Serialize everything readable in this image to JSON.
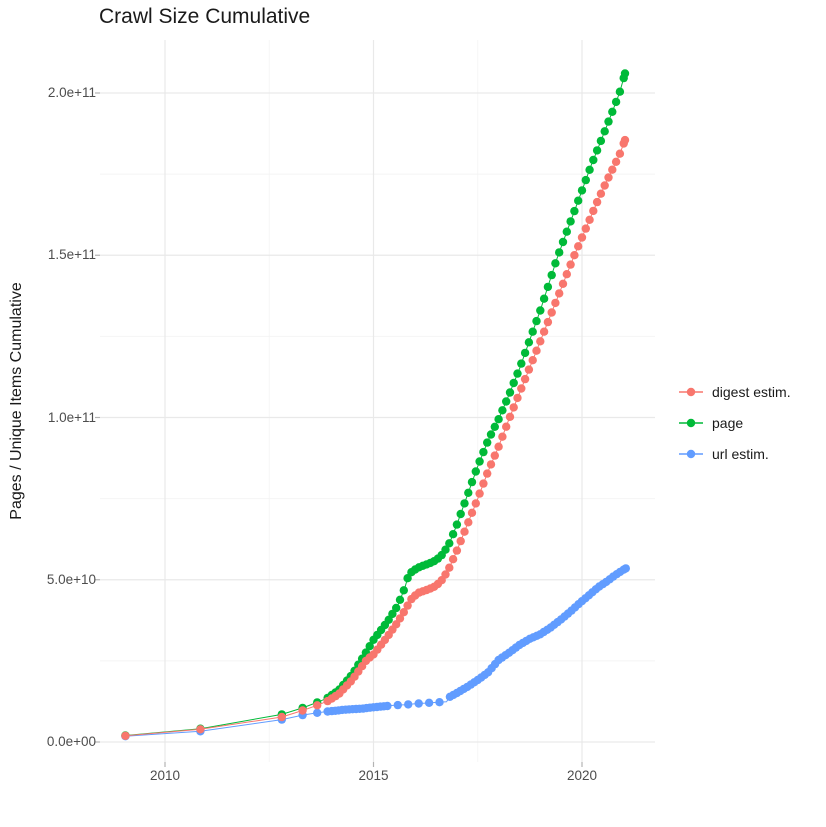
{
  "title": "Crawl Size Cumulative",
  "axes": {
    "y_title": "Pages / Unique Items Cumulative",
    "y_ticks": [
      "0.0e+00",
      "5.0e+10",
      "1.0e+11",
      "1.5e+11",
      "2.0e+11"
    ],
    "x_ticks": [
      "2010",
      "2015",
      "2020"
    ]
  },
  "legend": {
    "items": [
      {
        "label": "digest estim.",
        "color": "#F8766D"
      },
      {
        "label": "page",
        "color": "#00BA38"
      },
      {
        "label": "url estim.",
        "color": "#619CFF"
      }
    ]
  },
  "style": {
    "background": "#ffffff",
    "grid_major": "#e9e9e9",
    "grid_minor": "#f4f4f4",
    "tick_mark_color": "#b3b3b3",
    "tick_label_color": "#4d4d4d",
    "title_color": "#1a1a1a"
  },
  "chart_data": {
    "type": "line",
    "title": "Crawl Size Cumulative",
    "xlabel": "",
    "ylabel": "Pages / Unique Items Cumulative",
    "legend_position": "right",
    "grid": true,
    "x_axis": {
      "ticks": [
        2010,
        2015,
        2020
      ],
      "minor": [
        2012.5,
        2017.5
      ],
      "range": [
        2008.44,
        2021.75
      ],
      "unit": "year"
    },
    "y_axis": {
      "ticks": [
        0,
        50000000000.0,
        100000000000.0,
        150000000000.0,
        200000000000.0
      ],
      "minor": [
        25000000000.0,
        75000000000.0,
        125000000000.0,
        175000000000.0
      ],
      "range": [
        -6000000000.0,
        216000000000.0
      ]
    },
    "note": "x = calendar year (decimal); values read off chart pixels. 'points' are curve vertices; marker dots appear at each vertex before 2014 and at dot_schedule intervals after 2014.",
    "draw_order": [
      1,
      2,
      0
    ],
    "series": [
      {
        "name": "digest estim.",
        "color": "#F8766D",
        "dot_schedule": [
          [
            2014,
            0.0909
          ]
        ],
        "points": [
          [
            2009.05,
            1900000000.0
          ],
          [
            2010.85,
            3900000000.0
          ],
          [
            2012.8,
            7700000000.0
          ],
          [
            2013.3,
            9700000000.0
          ],
          [
            2013.65,
            11300000000.0
          ],
          [
            2013.9,
            12600000000.0
          ],
          [
            2014.17,
            14800000000.0
          ],
          [
            2014.5,
            19300000000.0
          ],
          [
            2014.83,
            25200000000.0
          ],
          [
            2015.0,
            27000000000.0
          ],
          [
            2015.33,
            32400000000.0
          ],
          [
            2015.58,
            36900000000.0
          ],
          [
            2015.75,
            40500000000.0
          ],
          [
            2015.92,
            44300000000.0
          ],
          [
            2016.08,
            46000000000.0
          ],
          [
            2016.33,
            47100000000.0
          ],
          [
            2016.5,
            48100000000.0
          ],
          [
            2016.67,
            50300000000.0
          ],
          [
            2016.83,
            54000000000.0
          ],
          [
            2017.0,
            59000000000.0
          ],
          [
            2017.25,
            67000000000.0
          ],
          [
            2017.5,
            75000000000.0
          ],
          [
            2017.75,
            83500000000.0
          ],
          [
            2018.0,
            91000000000.0
          ],
          [
            2018.25,
            99500000000.0
          ],
          [
            2018.5,
            107500000000.0
          ],
          [
            2018.75,
            115500000000.0
          ],
          [
            2019.0,
            123500000000.0
          ],
          [
            2019.2,
            130000000000.0
          ],
          [
            2019.4,
            136500000000.0
          ],
          [
            2019.6,
            143000000000.0
          ],
          [
            2019.8,
            149500000000.0
          ],
          [
            2020.0,
            155500000000.0
          ],
          [
            2020.2,
            161500000000.0
          ],
          [
            2020.4,
            167500000000.0
          ],
          [
            2020.6,
            173000000000.0
          ],
          [
            2020.75,
            177000000000.0
          ],
          [
            2020.9,
            181000000000.0
          ],
          [
            2021.03,
            185500000000.0
          ]
        ]
      },
      {
        "name": "page",
        "color": "#00BA38",
        "dot_schedule": [
          [
            2014,
            0.0909
          ]
        ],
        "points": [
          [
            2009.05,
            2000000000.0
          ],
          [
            2010.85,
            4100000000.0
          ],
          [
            2012.8,
            8500000000.0
          ],
          [
            2013.3,
            10500000000.0
          ],
          [
            2013.65,
            12200000000.0
          ],
          [
            2013.9,
            13600000000.0
          ],
          [
            2014.17,
            16000000000.0
          ],
          [
            2014.5,
            21000000000.0
          ],
          [
            2014.83,
            27800000000.0
          ],
          [
            2015.0,
            31500000000.0
          ],
          [
            2015.33,
            37000000000.0
          ],
          [
            2015.58,
            42000000000.0
          ],
          [
            2015.75,
            47500000000.0
          ],
          [
            2015.83,
            51000000000.0
          ],
          [
            2015.92,
            52500000000.0
          ],
          [
            2016.08,
            53800000000.0
          ],
          [
            2016.33,
            55000000000.0
          ],
          [
            2016.5,
            56000000000.0
          ],
          [
            2016.67,
            58000000000.0
          ],
          [
            2016.83,
            61500000000.0
          ],
          [
            2017.0,
            67000000000.0
          ],
          [
            2017.25,
            76000000000.0
          ],
          [
            2017.5,
            85000000000.0
          ],
          [
            2017.75,
            93000000000.0
          ],
          [
            2018.0,
            99500000000.0
          ],
          [
            2018.25,
            107000000000.0
          ],
          [
            2018.5,
            115000000000.0
          ],
          [
            2018.75,
            124000000000.0
          ],
          [
            2019.0,
            133000000000.0
          ],
          [
            2019.2,
            141000000000.0
          ],
          [
            2019.4,
            149000000000.0
          ],
          [
            2019.6,
            156000000000.0
          ],
          [
            2019.8,
            163000000000.0
          ],
          [
            2020.0,
            170000000000.0
          ],
          [
            2020.2,
            177000000000.0
          ],
          [
            2020.4,
            183500000000.0
          ],
          [
            2020.6,
            190000000000.0
          ],
          [
            2020.75,
            195000000000.0
          ],
          [
            2020.9,
            200000000000.0
          ],
          [
            2021.03,
            206000000000.0
          ]
        ]
      },
      {
        "name": "url estim.",
        "color": "#619CFF",
        "dot_schedule": [
          [
            2014,
            0.0833
          ],
          [
            2015.25,
            0.25
          ],
          [
            2016.75,
            0.0833
          ]
        ],
        "points": [
          [
            2009.05,
            1800000000.0
          ],
          [
            2010.85,
            3300000000.0
          ],
          [
            2012.8,
            6900000000.0
          ],
          [
            2013.3,
            8300000000.0
          ],
          [
            2013.65,
            9000000000.0
          ],
          [
            2013.9,
            9400000000.0
          ],
          [
            2014.08,
            9600000000.0
          ],
          [
            2014.25,
            9900000000.0
          ],
          [
            2014.5,
            10100000000.0
          ],
          [
            2014.75,
            10300000000.0
          ],
          [
            2015.0,
            10700000000.0
          ],
          [
            2015.25,
            11000000000.0
          ],
          [
            2015.5,
            11300000000.0
          ],
          [
            2015.75,
            11500000000.0
          ],
          [
            2016.0,
            11800000000.0
          ],
          [
            2016.25,
            12000000000.0
          ],
          [
            2016.5,
            12200000000.0
          ],
          [
            2016.75,
            12400000000.0
          ],
          [
            2016.83,
            13900000000.0
          ],
          [
            2017.0,
            15100000000.0
          ],
          [
            2017.25,
            17000000000.0
          ],
          [
            2017.5,
            19100000000.0
          ],
          [
            2017.75,
            21500000000.0
          ],
          [
            2018.0,
            25300000000.0
          ],
          [
            2018.25,
            27500000000.0
          ],
          [
            2018.5,
            29900000000.0
          ],
          [
            2018.75,
            31800000000.0
          ],
          [
            2019.0,
            33200000000.0
          ],
          [
            2019.25,
            35300000000.0
          ],
          [
            2019.5,
            37800000000.0
          ],
          [
            2019.75,
            40500000000.0
          ],
          [
            2019.9,
            42300000000.0
          ],
          [
            2020.1,
            44500000000.0
          ],
          [
            2020.4,
            47800000000.0
          ],
          [
            2020.6,
            49500000000.0
          ],
          [
            2020.75,
            51000000000.0
          ],
          [
            2020.9,
            52300000000.0
          ],
          [
            2021.05,
            53500000000.0
          ]
        ]
      }
    ]
  }
}
